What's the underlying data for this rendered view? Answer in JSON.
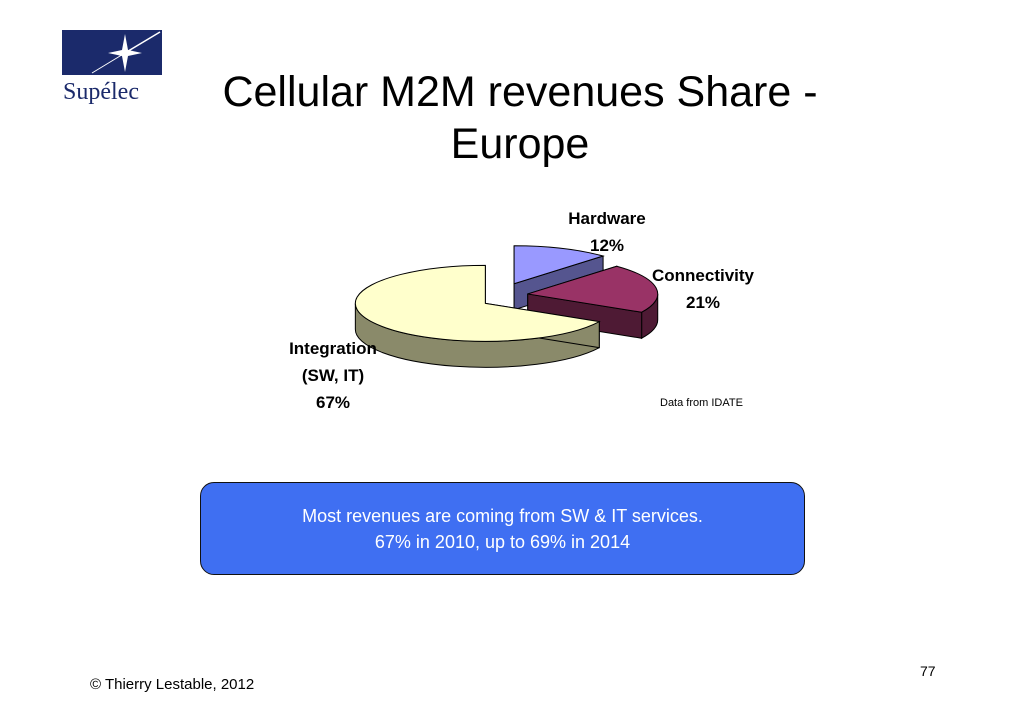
{
  "logo": {
    "text": "Supélec"
  },
  "title": {
    "line1": "Cellular M2M revenues Share -",
    "line2": "Europe"
  },
  "chart_data": {
    "type": "pie",
    "style": "3d-exploded",
    "slices": [
      {
        "label_lines": [
          "Hardware",
          "12%"
        ],
        "value": 12,
        "color": "#9999ff",
        "side_color": "#55558f"
      },
      {
        "label_lines": [
          "Connectivity",
          "21%"
        ],
        "value": 21,
        "color": "#993366",
        "side_color": "#4e1a34"
      },
      {
        "label_lines": [
          "Integration",
          "(SW, IT)",
          "67%"
        ],
        "value": 67,
        "color": "#ffffcc",
        "side_color": "#8a8a6a"
      }
    ],
    "source_note": "Data from IDATE"
  },
  "callout": {
    "line1": "Most revenues are coming from SW & IT services.",
    "line2": "67% in 2010, up to 69% in 2014"
  },
  "footer": {
    "page_number": "77",
    "copyright": "© Thierry Lestable, 2012"
  }
}
